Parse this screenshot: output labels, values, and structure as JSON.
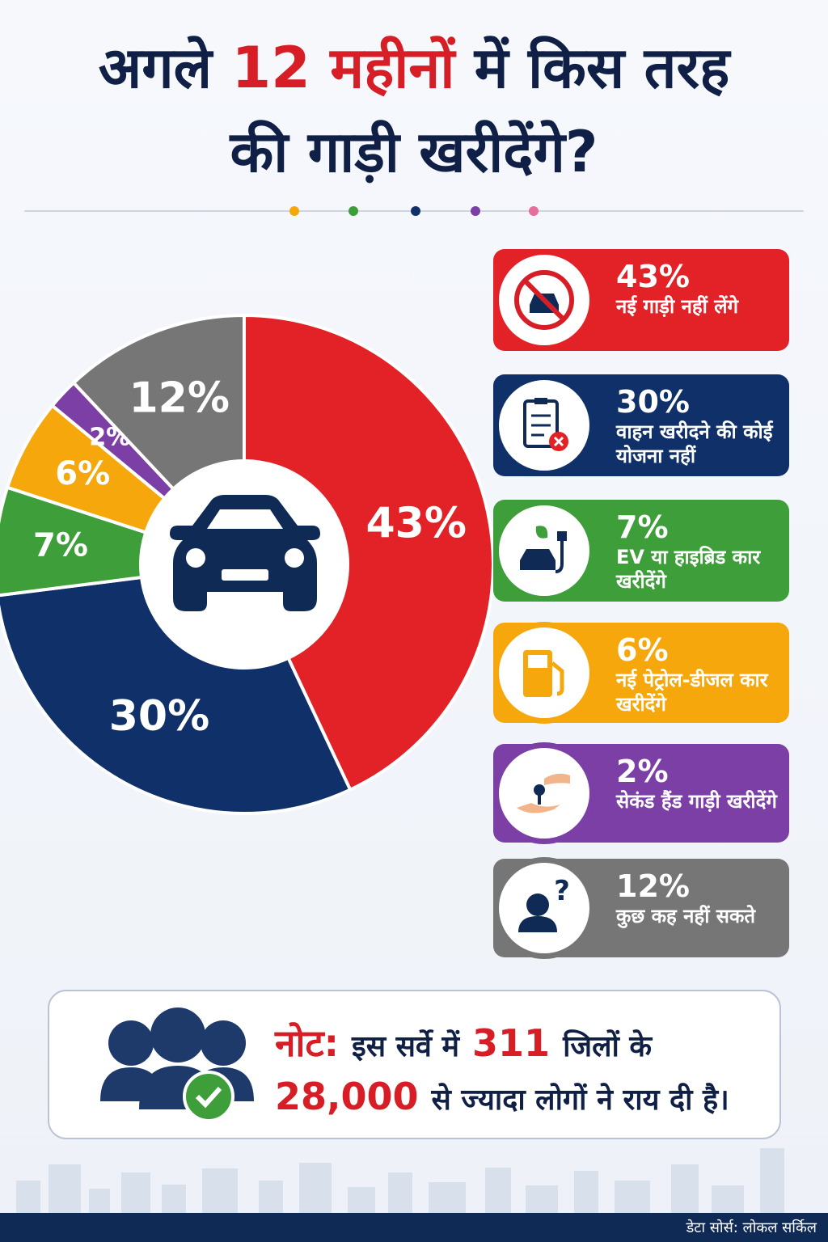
{
  "header": {
    "title_parts": [
      "अगले ",
      "12 महीनों",
      " में किस तरह",
      "की गाड़ी खरीदेंगे?"
    ]
  },
  "chart_data": {
    "type": "pie",
    "donut": true,
    "categories": [
      "नई गाड़ी नहीं लेंगे",
      "वाहन खरीदने की कोई योजना नहीं",
      "EV या हाइब्रिड कार खरीदेंगे",
      "नई पेट्रोल-डीजल कार खरीदेंगे",
      "सेकंड हैंड गाड़ी खरीदेंगे",
      "कुछ कह नहीं सकते"
    ],
    "values": [
      43,
      30,
      7,
      6,
      2,
      12
    ],
    "value_labels": [
      "43%",
      "30%",
      "7%",
      "6%",
      "2%",
      "12%"
    ],
    "colors": [
      "#e32227",
      "#0f3068",
      "#3e9e3a",
      "#f5a70c",
      "#7b3fa6",
      "#767676"
    ]
  },
  "note": {
    "label": "नोट:",
    "line1_a": "इस सर्वे में",
    "line1_num": "311",
    "line1_b": "जिलों के",
    "line2_num": "28,000",
    "line2_b": "से ज्यादा लोगों ने राय दी है।"
  },
  "footer": {
    "source": "डेटा सोर्स: लोकल सर्किल"
  }
}
